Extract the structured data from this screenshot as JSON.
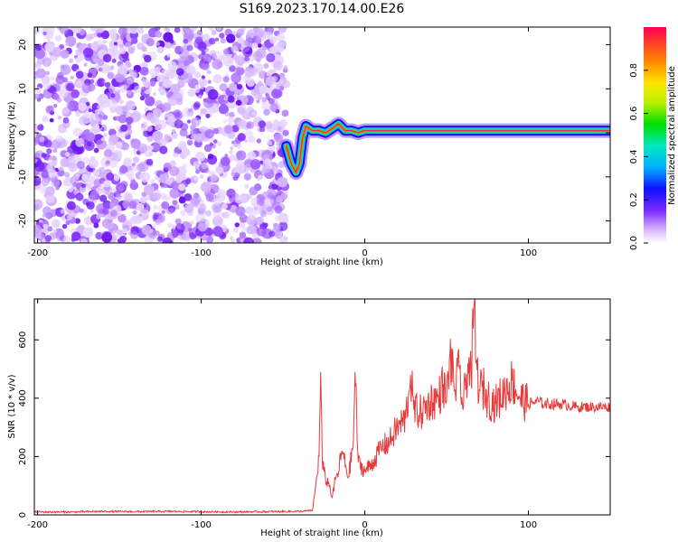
{
  "title": "S169.2023.170.14.00.E26",
  "chart_data": [
    {
      "type": "heatmap",
      "xlabel": "Height of straight line (km)",
      "ylabel": "Frequency (Hz)",
      "xlim": [
        -202,
        150
      ],
      "ylim": [
        -25,
        24
      ],
      "xticks": [
        -200,
        -100,
        0,
        100
      ],
      "yticks": [
        -20,
        -10,
        0,
        10,
        20
      ],
      "noise_region_x": [
        -202,
        -48
      ],
      "signal_trace": {
        "x": [
          -48,
          -45,
          -42,
          -40,
          -38,
          -36,
          -34,
          -32,
          -28,
          -24,
          -20,
          -16,
          -12,
          -8,
          -4,
          0,
          10,
          20,
          30,
          40,
          50,
          60,
          70,
          80,
          90,
          100,
          110,
          120,
          130,
          140,
          150
        ],
        "y": [
          -3,
          -7,
          -9,
          -7,
          -1,
          1.5,
          1,
          0.5,
          0.5,
          0,
          1,
          2,
          0.5,
          0.5,
          0,
          0.5,
          0.5,
          0.5,
          0.5,
          0.5,
          0.5,
          0.5,
          0.5,
          0.5,
          0.5,
          0.5,
          0.5,
          0.5,
          0.5,
          0.5,
          0.5
        ]
      },
      "colorbar": {
        "label": "Normalized spectral amplitude",
        "range": [
          0,
          1
        ],
        "ticks": [
          "0.0",
          "0.2",
          "0.4",
          "0.6",
          "0.8"
        ],
        "tick_values": [
          0,
          0.2,
          0.4,
          0.6,
          0.8
        ]
      }
    },
    {
      "type": "line",
      "xlabel": "Height of straight line (km)",
      "ylabel": "SNR (10 * v/v)",
      "xlim": [
        -202,
        150
      ],
      "ylim": [
        0,
        740
      ],
      "xticks": [
        -200,
        -100,
        0,
        100
      ],
      "yticks": [
        0,
        200,
        400,
        600
      ],
      "color": "#e83a3a",
      "series": [
        {
          "x": [
            -202,
            -180,
            -160,
            -140,
            -120,
            -100,
            -80,
            -60,
            -40,
            -32,
            -30,
            -28,
            -27,
            -26,
            -24,
            -22,
            -20,
            -18,
            -16,
            -14,
            -10,
            -7,
            -6,
            -4,
            0,
            5,
            10,
            15,
            20,
            25,
            28,
            30,
            35,
            40,
            45,
            48,
            50,
            52,
            55,
            58,
            60,
            63,
            65,
            67,
            68,
            70,
            73,
            75,
            80,
            85,
            90,
            95,
            100,
            105,
            110,
            120,
            130,
            140,
            150
          ],
          "y": [
            10,
            10,
            12,
            11,
            12,
            11,
            10,
            11,
            12,
            15,
            100,
            200,
            490,
            180,
            120,
            110,
            60,
            120,
            150,
            220,
            130,
            250,
            490,
            180,
            150,
            180,
            230,
            250,
            300,
            330,
            480,
            360,
            350,
            390,
            400,
            450,
            390,
            550,
            430,
            500,
            360,
            520,
            470,
            730,
            520,
            430,
            430,
            400,
            380,
            420,
            460,
            400,
            380,
            390,
            380,
            380,
            370,
            370,
            370
          ]
        }
      ]
    }
  ]
}
